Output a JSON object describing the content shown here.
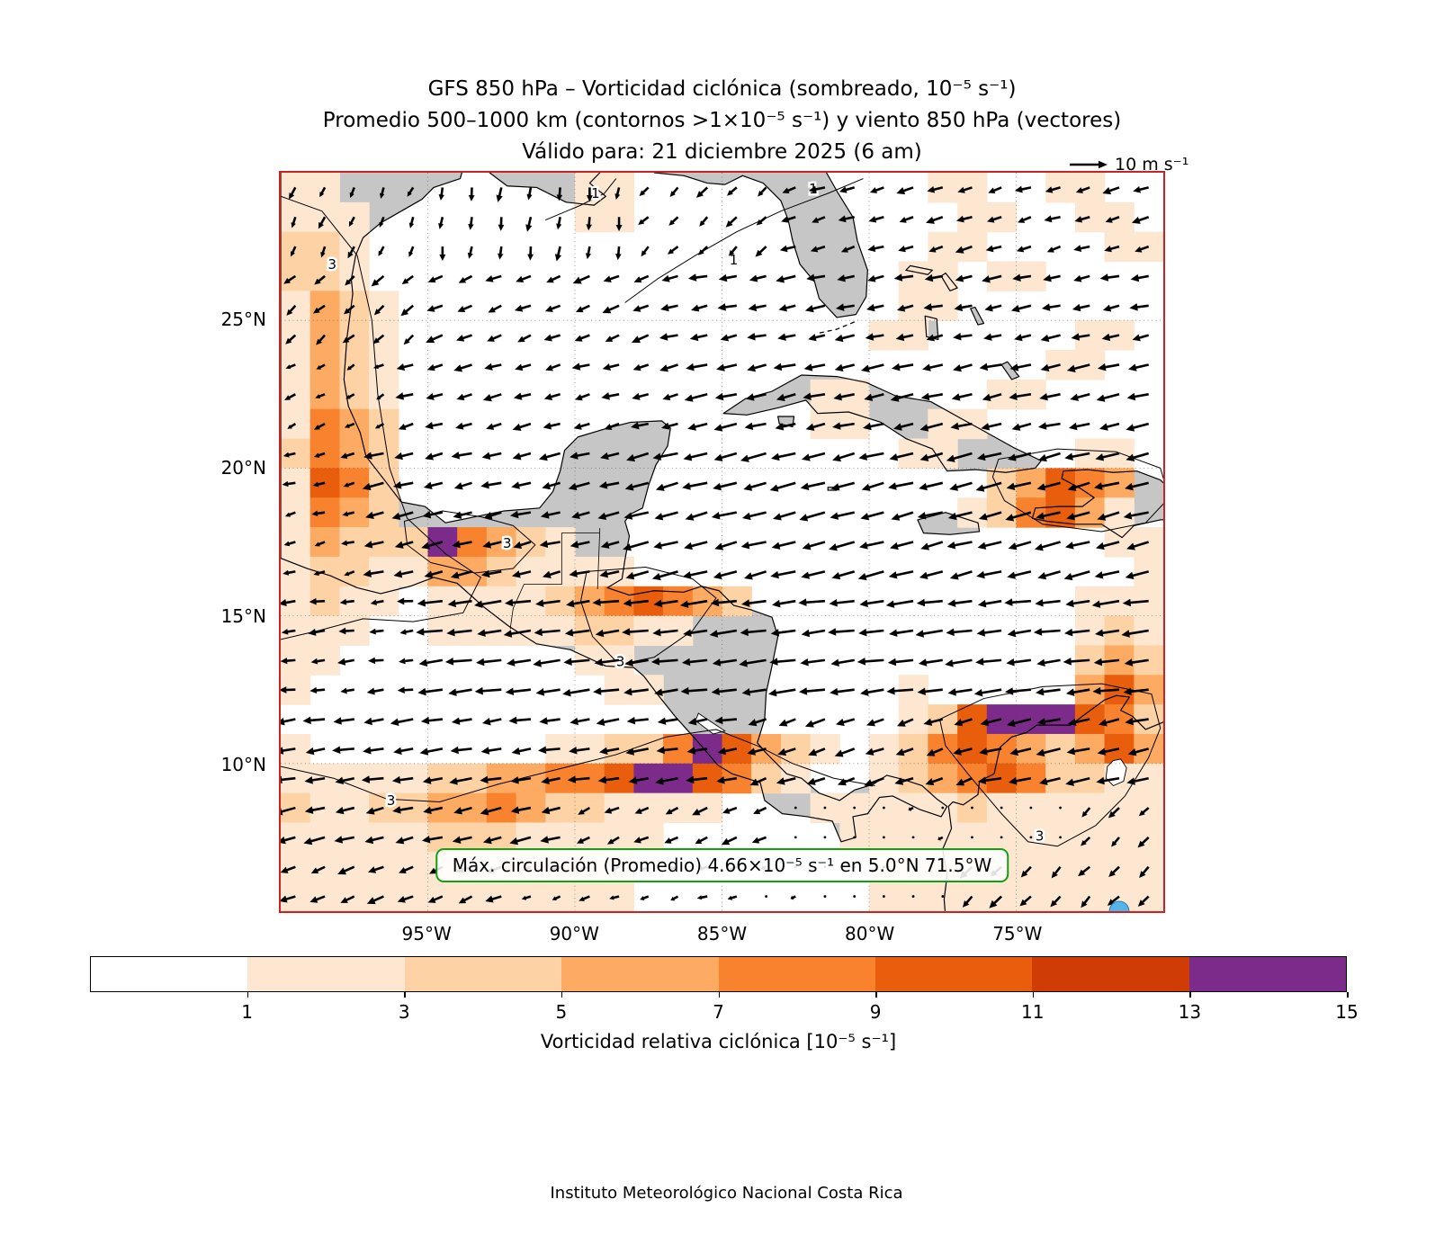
{
  "title": {
    "line1": "GFS 850 hPa – Vorticidad ciclónica (sombreado, 10⁻⁵ s⁻¹)",
    "line2": "Promedio 500–1000 km (contornos >1×10⁻⁵ s⁻¹) y viento 850 hPa (vectores)",
    "line3": "Válido para: 21 diciembre 2025 (6 am)"
  },
  "reference_arrow": {
    "label": "10 m s⁻¹",
    "speed": 10
  },
  "annotation": {
    "text": "Máx. circulación (Promedio) 4.66×10⁻⁵ s⁻¹ en 5.0°N 71.5°W",
    "border_color": "#10a010",
    "marker": {
      "lat": 5.0,
      "lon": -71.5,
      "color": "#55b5e8"
    }
  },
  "axes": {
    "lat_ticks": [
      {
        "value": 25,
        "label": "25°N"
      },
      {
        "value": 20,
        "label": "20°N"
      },
      {
        "value": 15,
        "label": "15°N"
      },
      {
        "value": 10,
        "label": "10°N"
      }
    ],
    "lon_ticks": [
      {
        "value": -95,
        "label": "95°W"
      },
      {
        "value": -90,
        "label": "90°W"
      },
      {
        "value": -85,
        "label": "85°W"
      },
      {
        "value": -80,
        "label": "80°W"
      },
      {
        "value": -75,
        "label": "75°W"
      }
    ]
  },
  "colorbar": {
    "label": "Vorticidad relativa ciclónica [10⁻⁵ s⁻¹]",
    "tick_labels": [
      "1",
      "3",
      "5",
      "7",
      "9",
      "11",
      "13",
      "15"
    ],
    "boundaries": [
      0,
      1,
      3,
      5,
      7,
      9,
      11,
      13,
      15
    ],
    "colors": [
      "#ffffff",
      "#fee7d1",
      "#fdd2a5",
      "#fdaa63",
      "#f8822e",
      "#e95e0d",
      "#d03c06",
      "#7d2b8b"
    ]
  },
  "footer": "Instituto Meteorológico Nacional Costa Rica",
  "colors": {
    "map_border": "#cc2222",
    "land": "#c6c6c6",
    "ocean": "#ffffff",
    "vectors": "#000000"
  },
  "chart_data": {
    "type": "heatmap",
    "overlays": [
      "wind_vectors",
      "contours",
      "coastlines"
    ],
    "model": "GFS",
    "level": "850 hPa",
    "valid_time": "21 diciembre 2025 (6 am)",
    "units": "10⁻⁵ s⁻¹",
    "lon_range": [
      -100,
      -70
    ],
    "lat_range": [
      5,
      30
    ],
    "cell_size_deg": 1,
    "grid_encoding": "25 rows north(30N)→south(5N), 30 hex chars per row west(100W)→east(70W); each char = cyclonic vorticity in 10⁻⁵ s⁻¹ (0–15, a=10 … f=15)",
    "vorticity_grid": [
      "210000000022000000000011001100",
      "221000000011000000000001100110",
      "332000000000000000000011000011",
      "342000000000000000000110110000",
      "253100000000000000000110000000",
      "263100000000000000001100000110",
      "163200000000000000000000001100",
      "264200000000000000110000110000",
      "275300000000000000110011000000",
      "386300000000000000000110000110",
      "297400000000000000000000359750",
      "286400000000000000000002479620",
      "25433e753200000000000000000022",
      "243225532211000000000000000002",
      "232101222358975300000000000121",
      "221001122233210000000000000231",
      "110000000011000000000000000363",
      "100000000001100000000100000595",
      "00000000000000000000024aeeea74",
      "10000000012347e953101389853595",
      "211223456789ee9731002358a74321",
      "322345675432211000111223211111",
      "221123432211100000011122111121",
      "112112221111000000001111211111",
      "211111111221000000001112111211"
    ],
    "max_circulation": {
      "value_text": "4.66×10⁻⁵ s⁻¹",
      "lat_text": "5.0°N",
      "lon_text": "71.5°W",
      "lat": 5.0,
      "lon": -71.5
    },
    "contours": [
      {
        "value": 3,
        "closed": false,
        "labels": [
          [
            -98.25,
            26.9
          ]
        ],
        "path": [
          [
            -100,
            29.2
          ],
          [
            -98.6,
            28.7
          ],
          [
            -97.4,
            27.2
          ],
          [
            -96.9,
            25.0
          ],
          [
            -96.7,
            22.5
          ],
          [
            -96.3,
            20.0
          ],
          [
            -95.7,
            18.3
          ],
          [
            -94.4,
            17.1
          ],
          [
            -93.2,
            16.3
          ],
          [
            -93.8,
            15.1
          ],
          [
            -95.5,
            14.8
          ],
          [
            -97.2,
            14.9
          ],
          [
            -98.7,
            14.5
          ],
          [
            -100,
            14.2
          ]
        ]
      },
      {
        "value": 3,
        "closed": true,
        "labels": [
          [
            -92.3,
            17.45
          ]
        ],
        "path": [
          [
            -95.8,
            18.2
          ],
          [
            -94.5,
            18.55
          ],
          [
            -93.2,
            18.35
          ],
          [
            -92.1,
            18.05
          ],
          [
            -91.35,
            17.4
          ],
          [
            -92.1,
            16.6
          ],
          [
            -93.4,
            16.45
          ],
          [
            -94.9,
            16.8
          ],
          [
            -95.7,
            17.4
          ]
        ]
      },
      {
        "value": 3,
        "closed": true,
        "labels": [
          [
            -88.45,
            13.45
          ]
        ],
        "path": [
          [
            -89.6,
            16.5
          ],
          [
            -87.6,
            16.65
          ],
          [
            -86.0,
            16.25
          ],
          [
            -85.2,
            15.6
          ],
          [
            -86.0,
            14.5
          ],
          [
            -87.3,
            13.6
          ],
          [
            -88.5,
            13.35
          ],
          [
            -89.4,
            14.3
          ],
          [
            -89.8,
            15.5
          ]
        ]
      },
      {
        "value": 3,
        "closed": false,
        "labels": [
          [
            -96.25,
            8.75
          ]
        ],
        "path": [
          [
            -100,
            9.9
          ],
          [
            -98.2,
            9.5
          ],
          [
            -96.4,
            8.8
          ],
          [
            -94.6,
            8.7
          ],
          [
            -92.6,
            9.3
          ],
          [
            -90.6,
            9.8
          ],
          [
            -88.6,
            10.3
          ],
          [
            -86.9,
            10.9
          ],
          [
            -85.2,
            11.15
          ],
          [
            -83.8,
            10.6
          ],
          [
            -82.6,
            10.0
          ],
          [
            -81.2,
            9.5
          ],
          [
            -79.8,
            9.25
          ]
        ]
      },
      {
        "value": 3,
        "closed": true,
        "labels": [
          [
            -74.2,
            7.55
          ]
        ],
        "path": [
          [
            -77.6,
            11.5
          ],
          [
            -76.1,
            12.2
          ],
          [
            -74.1,
            12.6
          ],
          [
            -72.1,
            12.7
          ],
          [
            -70.4,
            12.35
          ],
          [
            -70.1,
            11.2
          ],
          [
            -70.5,
            10.2
          ],
          [
            -71.3,
            8.9
          ],
          [
            -72.3,
            7.9
          ],
          [
            -73.6,
            7.2
          ],
          [
            -74.6,
            7.35
          ],
          [
            -75.5,
            8.3
          ],
          [
            -76.6,
            9.6
          ],
          [
            -77.4,
            10.6
          ]
        ]
      },
      {
        "value": 3,
        "closed": true,
        "labels": [],
        "path": [
          [
            -75.6,
            20.3
          ],
          [
            -73.6,
            20.65
          ],
          [
            -71.6,
            20.55
          ],
          [
            -70.1,
            20.0
          ],
          [
            -69.8,
            19.0
          ],
          [
            -70.6,
            18.15
          ],
          [
            -72.1,
            17.85
          ],
          [
            -74.1,
            18.1
          ],
          [
            -75.4,
            18.9
          ],
          [
            -75.8,
            19.7
          ]
        ]
      },
      {
        "value": 1,
        "closed": false,
        "labels": [
          [
            -84.6,
            27.05
          ],
          [
            -81.9,
            29.45
          ]
        ],
        "path": [
          [
            -88.3,
            25.6
          ],
          [
            -87.2,
            26.4
          ],
          [
            -85.9,
            27.2
          ],
          [
            -84.5,
            28.0
          ],
          [
            -83.0,
            28.7
          ],
          [
            -81.4,
            29.3
          ],
          [
            -80.2,
            29.8
          ]
        ]
      },
      {
        "value": 1,
        "closed": false,
        "labels": [
          [
            -89.3,
            29.3
          ]
        ],
        "path": [
          [
            -91.0,
            28.4
          ],
          [
            -89.8,
            28.9
          ],
          [
            -89.0,
            29.3
          ],
          [
            -88.6,
            29.8
          ]
        ]
      }
    ],
    "wind_units": "m s⁻¹",
    "wind_reference_speed": 10,
    "wind_bands": [
      {
        "lat_min": 27.5,
        "lat_max": 30,
        "segments": [
          {
            "lon_min": -100,
            "lon_max": -95,
            "u": -1.5,
            "v": -3.5
          },
          {
            "lon_min": -95,
            "lon_max": -88,
            "u": -0.5,
            "v": -4.5
          },
          {
            "lon_min": -88,
            "lon_max": -83,
            "u": -3,
            "v": -3
          },
          {
            "lon_min": -83,
            "lon_max": -70,
            "u": -5,
            "v": -1.5
          }
        ]
      },
      {
        "lat_min": 24.5,
        "lat_max": 27.5,
        "segments": [
          {
            "lon_min": -100,
            "lon_max": -95,
            "u": -3.5,
            "v": -3
          },
          {
            "lon_min": -95,
            "lon_max": -87,
            "u": -5,
            "v": -2
          },
          {
            "lon_min": -87,
            "lon_max": -70,
            "u": -6,
            "v": -1.2
          }
        ]
      },
      {
        "lat_min": 21.5,
        "lat_max": 24.5,
        "segments": [
          {
            "lon_min": -100,
            "lon_max": -96,
            "u": -3,
            "v": -1.5
          },
          {
            "lon_min": -96,
            "lon_max": -86,
            "u": -5.5,
            "v": -1.5
          },
          {
            "lon_min": -86,
            "lon_max": -70,
            "u": -7,
            "v": -1.5
          }
        ]
      },
      {
        "lat_min": 16.5,
        "lat_max": 21.5,
        "segments": [
          {
            "lon_min": -100,
            "lon_max": -97,
            "u": -4,
            "v": -1
          },
          {
            "lon_min": -97,
            "lon_max": -88,
            "u": -6.5,
            "v": -1.5
          },
          {
            "lon_min": -88,
            "lon_max": -70,
            "u": -8,
            "v": -2
          }
        ]
      },
      {
        "lat_min": 12.5,
        "lat_max": 16.5,
        "segments": [
          {
            "lon_min": -100,
            "lon_max": -95,
            "u": -5,
            "v": -0.5
          },
          {
            "lon_min": -95,
            "lon_max": -70,
            "u": -8.5,
            "v": -1
          }
        ]
      },
      {
        "lat_min": 9.5,
        "lat_max": 12.5,
        "segments": [
          {
            "lon_min": -100,
            "lon_max": -84,
            "u": -7,
            "v": -1
          },
          {
            "lon_min": -84,
            "lon_max": -76,
            "u": -6,
            "v": -2
          },
          {
            "lon_min": -76,
            "lon_max": -70,
            "u": -7.5,
            "v": -1.5
          }
        ]
      },
      {
        "lat_min": 7.5,
        "lat_max": 9.5,
        "segments": [
          {
            "lon_min": -100,
            "lon_max": -90,
            "u": -6.5,
            "v": -1.5
          },
          {
            "lon_min": -90,
            "lon_max": -83,
            "u": -4.5,
            "v": -2
          },
          {
            "lon_min": -83,
            "lon_max": -73,
            "u": -1,
            "v": -0.3
          },
          {
            "lon_min": -73,
            "lon_max": -70,
            "u": -3,
            "v": -3
          }
        ]
      },
      {
        "lat_min": 5,
        "lat_max": 7.5,
        "segments": [
          {
            "lon_min": -100,
            "lon_max": -92,
            "u": -5,
            "v": -2
          },
          {
            "lon_min": -92,
            "lon_max": -84,
            "u": -3,
            "v": -1
          },
          {
            "lon_min": -84,
            "lon_max": -77,
            "u": -1,
            "v": -0.3
          },
          {
            "lon_min": -77,
            "lon_max": -70,
            "u": -3.5,
            "v": -3.5
          }
        ]
      }
    ]
  }
}
